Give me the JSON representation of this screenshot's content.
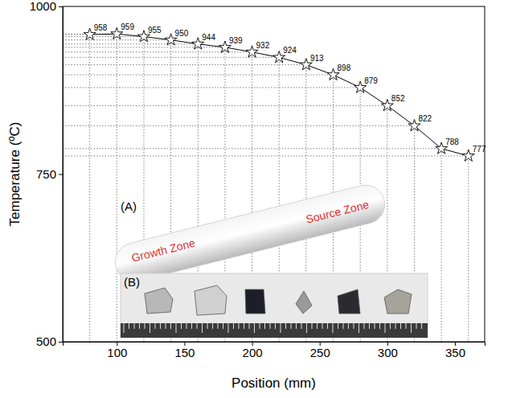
{
  "chart_data": {
    "type": "line",
    "x_label": "Position (mm)",
    "y_label": "Temperature (ºC)",
    "x": [
      80,
      100,
      120,
      140,
      160,
      180,
      200,
      220,
      240,
      260,
      280,
      300,
      320,
      340,
      360
    ],
    "values": [
      958,
      959,
      955,
      950,
      944,
      939,
      932,
      924,
      913,
      898,
      879,
      852,
      822,
      788,
      777
    ],
    "color": "#000000",
    "marker": "star",
    "data_labels": true,
    "grid": true,
    "xlim": [
      60,
      372
    ],
    "xticks": [
      100,
      150,
      200,
      250,
      300,
      350
    ],
    "ylim": [
      500,
      1000
    ],
    "yticks": [
      500,
      750,
      1000
    ],
    "annotations": [
      {
        "text": "(A)"
      },
      {
        "text": "Growth Zone"
      },
      {
        "text": "Source Zone"
      },
      {
        "text": "(B)"
      }
    ]
  }
}
